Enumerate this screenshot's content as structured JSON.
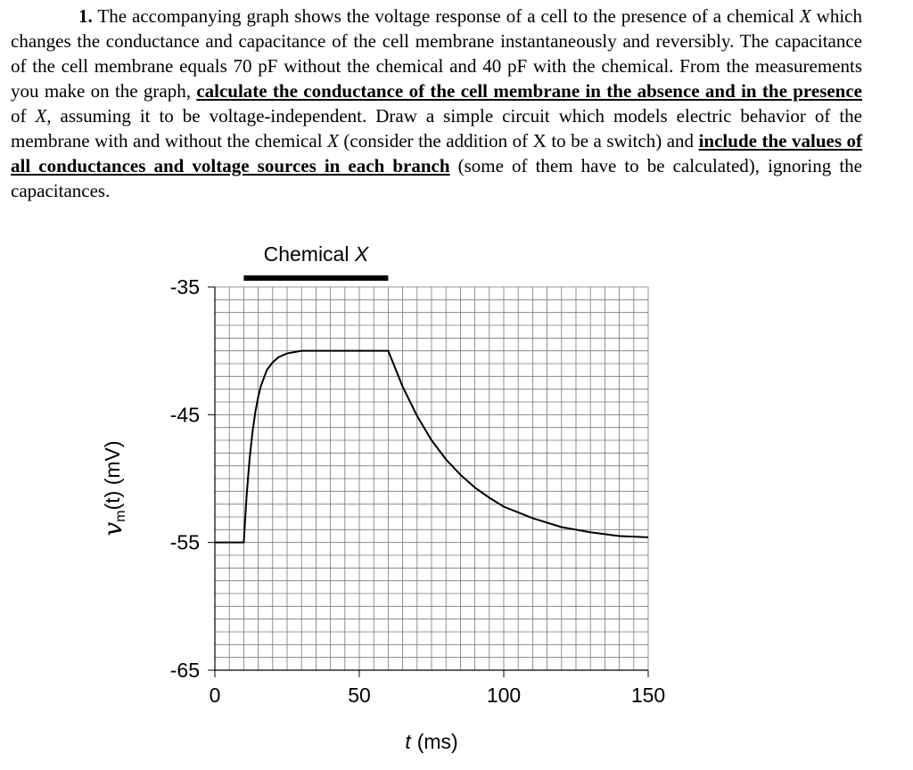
{
  "problem": {
    "segments": [
      {
        "text": "1.",
        "style": "bold"
      },
      {
        "text": " The accompanying graph shows the voltage response of a cell to the presence of a chemical ",
        "style": "plain"
      },
      {
        "text": "X",
        "style": "italic"
      },
      {
        "text": " which changes the conductance and capacitance of the cell membrane instantaneously and reversibly. The capacitance of the cell membrane equals 70 pF without the chemical and 40 pF with the chemical.  From the measurements you make on the graph, ",
        "style": "plain"
      },
      {
        "text": "calculate the conductance of the cell membrane in the absence and in the presence",
        "style": "bold-underline"
      },
      {
        "text": " of ",
        "style": "plain"
      },
      {
        "text": "X,",
        "style": "italic"
      },
      {
        "text": " assuming it to be voltage-independent. Draw a simple circuit which models electric behavior of the membrane with and without the chemical ",
        "style": "plain"
      },
      {
        "text": "X",
        "style": "italic"
      },
      {
        "text": " (consider the addition of X to be a switch) and ",
        "style": "plain"
      },
      {
        "text": "include the values of all conductances and voltage sources in each branch",
        "style": "bold-underline"
      },
      {
        "text": " (some of them have to be calculated), ignoring the capacitances.",
        "style": "plain"
      }
    ]
  },
  "chart_data": {
    "type": "line",
    "annotation": {
      "label": "Chemical ",
      "label_italic": "X",
      "span": [
        10,
        60
      ]
    },
    "x_label": {
      "symbol": "t",
      "rest": "(ms)"
    },
    "y_label": {
      "symbol": "v",
      "subscript": "m",
      "rest": "(t) (mV)"
    },
    "x": [
      0,
      10,
      11,
      12,
      13,
      14,
      15,
      16,
      18,
      20,
      22,
      25,
      30,
      40,
      50,
      60,
      65,
      70,
      75,
      80,
      85,
      90,
      95,
      100,
      110,
      120,
      130,
      140,
      150
    ],
    "values": [
      -55,
      -55,
      -51.3,
      -48.5,
      -46.4,
      -44.8,
      -43.6,
      -42.7,
      -41.5,
      -40.9,
      -40.5,
      -40.2,
      -40,
      -40,
      -40,
      -40,
      -42.8,
      -45.1,
      -47.0,
      -48.5,
      -49.7,
      -50.7,
      -51.5,
      -52.2,
      -53.1,
      -53.8,
      -54.2,
      -54.5,
      -54.6
    ],
    "color": "#000000",
    "xlim": [
      0,
      150
    ],
    "xticks": [
      0,
      50,
      100,
      150
    ],
    "ylim": [
      -65,
      -35
    ],
    "yticks": [
      -35,
      -45,
      -55,
      -65
    ],
    "grid": {
      "x_step": 5,
      "y_step": 1
    }
  }
}
